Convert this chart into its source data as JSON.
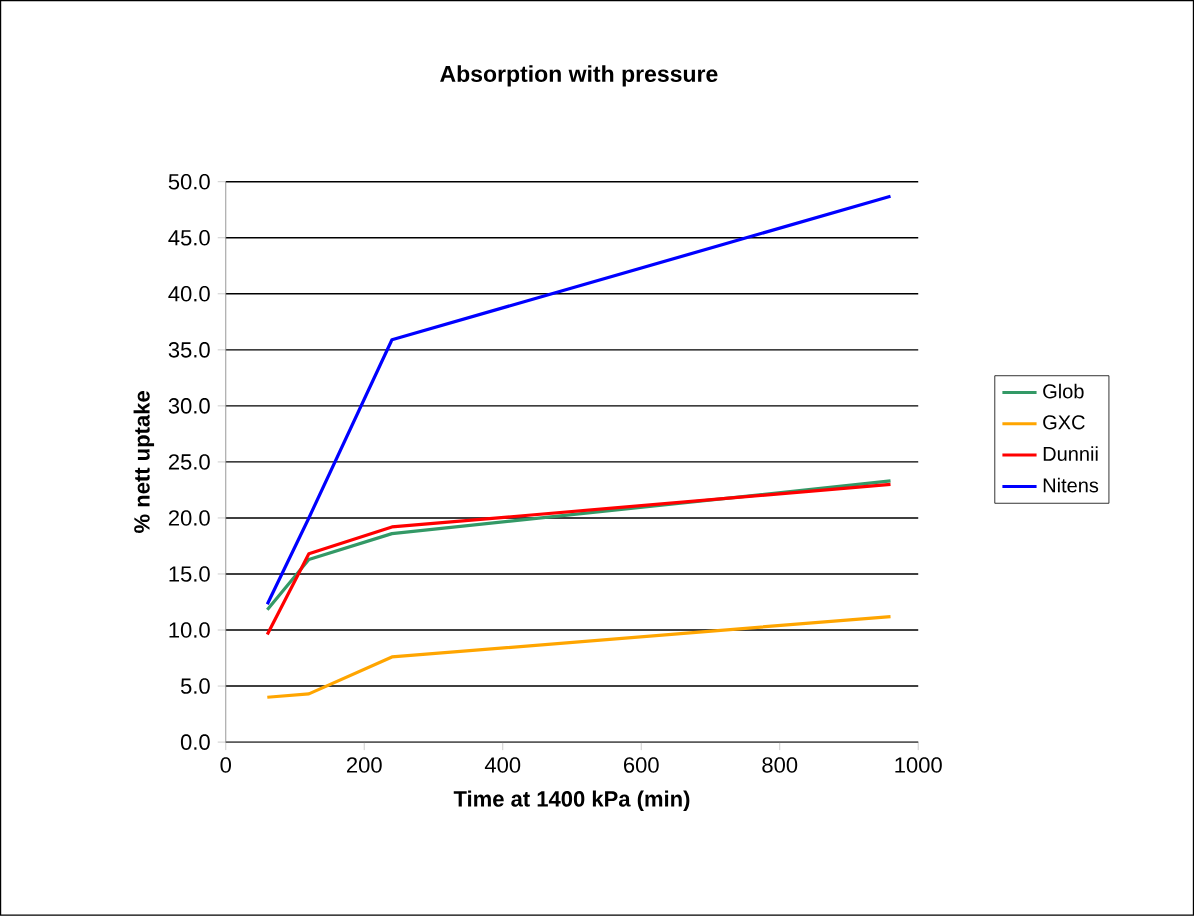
{
  "chart_data": {
    "type": "line",
    "title": "Absorption with pressure",
    "xlabel": "Time at 1400 kPa (min)",
    "ylabel": "% nett uptake",
    "x": [
      60,
      120,
      240,
      960
    ],
    "series": [
      {
        "name": "Glob",
        "color": "#339966",
        "values": [
          11.8,
          16.3,
          18.6,
          23.3
        ]
      },
      {
        "name": "GXC",
        "color": "#ffa500",
        "values": [
          4.0,
          4.3,
          7.6,
          11.2
        ]
      },
      {
        "name": "Dunnii",
        "color": "#ff0000",
        "values": [
          9.6,
          16.8,
          19.2,
          23.0
        ]
      },
      {
        "name": "Nitens",
        "color": "#0000ff",
        "values": [
          12.3,
          20.0,
          35.9,
          48.7
        ]
      }
    ],
    "xlim": [
      0,
      1000
    ],
    "xticks": [
      0,
      200,
      400,
      600,
      800,
      1000
    ],
    "ylim": [
      0,
      50
    ],
    "yticks": [
      {
        "value": 0,
        "label": "0.0"
      },
      {
        "value": 5,
        "label": "5.0"
      },
      {
        "value": 10,
        "label": "10.0"
      },
      {
        "value": 15,
        "label": "15.0"
      },
      {
        "value": 20,
        "label": "20.0"
      },
      {
        "value": 25,
        "label": "25.0"
      },
      {
        "value": 30,
        "label": "30.0"
      },
      {
        "value": 35,
        "label": "35.0"
      },
      {
        "value": 40,
        "label": "40.0"
      },
      {
        "value": 45,
        "label": "45.0"
      },
      {
        "value": 50,
        "label": "50.0"
      }
    ],
    "grid": "y",
    "legend": "right",
    "marker": "none",
    "line_style": "solid"
  }
}
